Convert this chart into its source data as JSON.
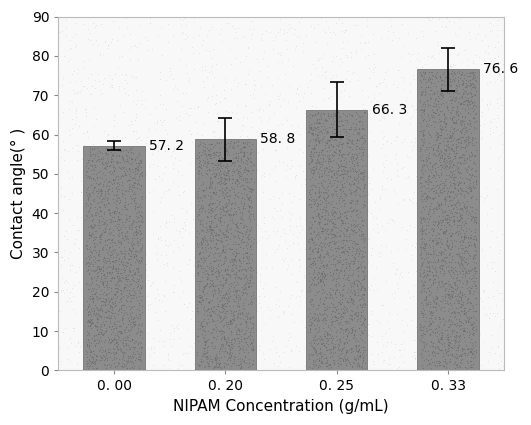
{
  "categories": [
    "0. 00",
    "0. 20",
    "0. 25",
    "0. 33"
  ],
  "values": [
    57.2,
    58.8,
    66.3,
    76.6
  ],
  "errors": [
    1.2,
    5.5,
    7.0,
    5.5
  ],
  "bar_color": "#8c8c8c",
  "bar_width": 0.55,
  "value_labels": [
    "57. 2",
    "58. 8",
    "66. 3",
    "76. 6"
  ],
  "xlabel": "NIPAM Concentration (g/mL)",
  "ylabel": "Contact angle(° )",
  "ylim": [
    0,
    90
  ],
  "yticks": [
    0,
    10,
    20,
    30,
    40,
    50,
    60,
    70,
    80,
    90
  ],
  "background_color": "#ffffff",
  "plot_bg_color": "#f8f8f8",
  "label_fontsize": 11,
  "tick_fontsize": 10,
  "value_label_fontsize": 10,
  "spine_color": "#bbbbbb",
  "tick_color": "#888888"
}
